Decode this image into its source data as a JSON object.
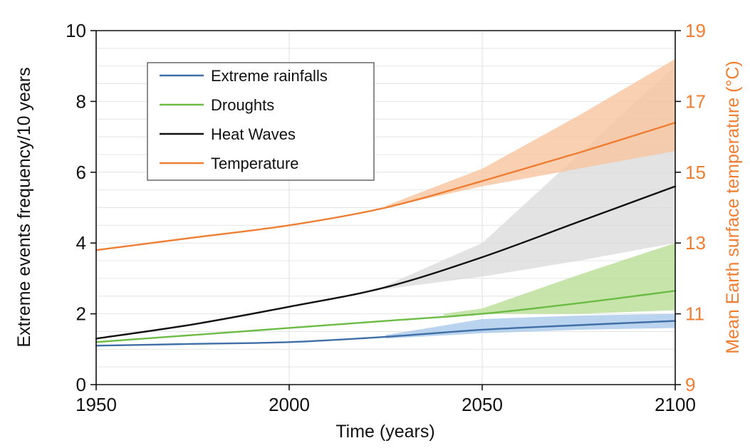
{
  "chart_data": {
    "type": "line",
    "xlabel": "Time (years)",
    "ylabel": "Extreme events frequency/10 years",
    "y2label": "Mean Earth surface temperature (°C)",
    "xlim": [
      1950,
      2100
    ],
    "ylim": [
      0,
      10
    ],
    "y2lim": [
      9,
      19
    ],
    "x_ticks": [
      1950,
      2000,
      2050,
      2100
    ],
    "y_ticks": [
      0,
      2,
      4,
      6,
      8,
      10
    ],
    "y2_ticks": [
      9,
      11,
      13,
      15,
      17,
      19
    ],
    "grid": true,
    "legend_position": "top-left",
    "colors": {
      "rain": "#3f6fa6",
      "rain_band": "#a9c8ea",
      "drought": "#6cbb45",
      "drought_band": "#b9df96",
      "heat": "#111111",
      "heat_band": "#d9d9d9",
      "temp": "#ef7d32",
      "temp_band": "#f7c49d",
      "grid": "#e4e4e4"
    },
    "series": [
      {
        "name": "Extreme rainfalls",
        "axis": "left",
        "color_key": "rain",
        "x": [
          1950,
          1975,
          2000,
          2025,
          2050,
          2075,
          2100
        ],
        "values": [
          1.1,
          1.15,
          1.2,
          1.35,
          1.55,
          1.68,
          1.8
        ],
        "band": {
          "x": [
            2025,
            2050,
            2075,
            2100
          ],
          "lower": [
            1.3,
            1.45,
            1.55,
            1.6
          ],
          "upper": [
            1.4,
            1.85,
            1.95,
            2.0
          ]
        }
      },
      {
        "name": "Droughts",
        "axis": "left",
        "color_key": "drought",
        "x": [
          1950,
          1975,
          2000,
          2025,
          2050,
          2075,
          2100
        ],
        "values": [
          1.2,
          1.4,
          1.6,
          1.8,
          2.0,
          2.3,
          2.65
        ],
        "band": {
          "x": [
            2040,
            2050,
            2075,
            2100
          ],
          "lower": [
            1.95,
            2.0,
            2.0,
            2.1
          ],
          "upper": [
            2.0,
            2.15,
            3.1,
            4.0
          ]
        }
      },
      {
        "name": "Heat Waves",
        "axis": "left",
        "color_key": "heat",
        "x": [
          1950,
          1975,
          2000,
          2025,
          2050,
          2075,
          2100
        ],
        "values": [
          1.3,
          1.7,
          2.2,
          2.75,
          3.6,
          4.6,
          5.6
        ],
        "band": {
          "x": [
            2025,
            2050,
            2075,
            2100
          ],
          "lower": [
            2.7,
            3.05,
            3.5,
            4.0
          ],
          "upper": [
            2.8,
            4.0,
            6.5,
            9.0
          ]
        }
      },
      {
        "name": "Temperature",
        "axis": "right",
        "color_key": "temp",
        "x": [
          1950,
          1975,
          2000,
          2025,
          2050,
          2075,
          2100
        ],
        "values": [
          12.8,
          13.15,
          13.5,
          14.0,
          14.75,
          15.55,
          16.4
        ],
        "band": {
          "x": [
            2025,
            2050,
            2075,
            2100
          ],
          "lower": [
            14.0,
            14.6,
            15.1,
            15.6
          ],
          "upper": [
            14.05,
            15.1,
            16.6,
            18.2
          ]
        }
      }
    ]
  }
}
